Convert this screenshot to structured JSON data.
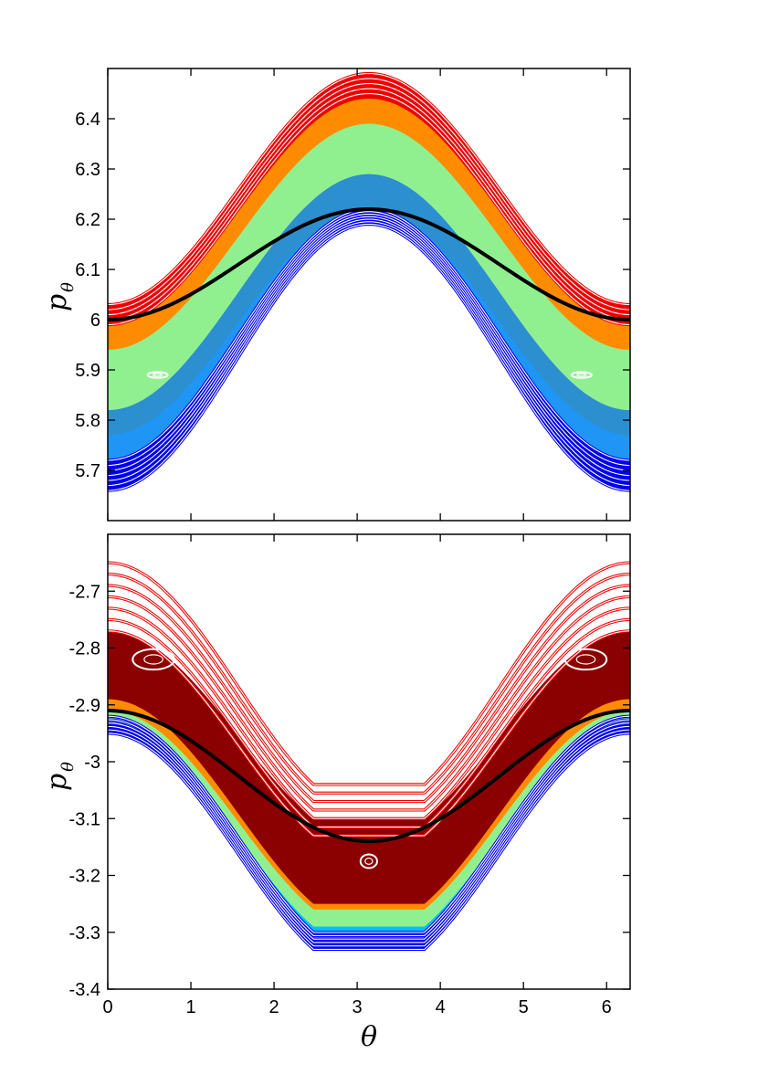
{
  "chart_data": [
    {
      "type": "scatter",
      "subtype": "poincare-section",
      "panel": "top",
      "title": "",
      "xlabel": "θ",
      "ylabel": {
        "main": "p",
        "subscript": "θ"
      },
      "xlim": [
        0,
        6.2832
      ],
      "ylim": [
        5.6,
        6.5
      ],
      "x_ticks": [
        0,
        1,
        2,
        3,
        4,
        5,
        6
      ],
      "y_ticks": [
        5.7,
        5.8,
        5.9,
        6.0,
        6.1,
        6.2,
        6.3,
        6.4
      ],
      "y_tick_labels": [
        "5.7",
        "5.8",
        "5.9",
        "6",
        "6.1",
        "6.2",
        "6.3",
        "6.4"
      ],
      "shape": "raised-cosine",
      "bands": [
        {
          "name": "blue",
          "color": "#0000ee",
          "edge_low": 5.66,
          "peak_low": 6.19,
          "edge_high": 5.73,
          "peak_high": 6.23
        },
        {
          "name": "dodger-blue",
          "color": "#1f96f5",
          "edge_low": 5.72,
          "peak_low": 6.22,
          "edge_high": 5.82,
          "peak_high": 6.26
        },
        {
          "name": "steel-blue",
          "color": "#2c8fd0",
          "edge_low": 5.77,
          "peak_low": 6.22,
          "edge_high": 5.82,
          "peak_high": 6.29
        },
        {
          "name": "light-green",
          "color": "#90f090",
          "edge_low": 5.82,
          "peak_low": 6.29,
          "edge_high": 5.95,
          "peak_high": 6.4
        },
        {
          "name": "orange",
          "color": "#ff8c00",
          "edge_low": 5.94,
          "peak_low": 6.39,
          "edge_high": 5.99,
          "peak_high": 6.45
        },
        {
          "name": "red",
          "color": "#ee0000",
          "edge_low": 5.99,
          "peak_low": 6.44,
          "edge_high": 6.03,
          "peak_high": 6.49
        }
      ],
      "curve_families": [
        {
          "color": "#0000ee",
          "count": 7,
          "edge_from": 5.66,
          "edge_to": 5.72,
          "peak_from": 6.19,
          "peak_to": 6.22
        },
        {
          "color": "#ee0000",
          "count": 5,
          "edge_from": 5.99,
          "edge_to": 6.03,
          "peak_from": 6.45,
          "peak_to": 6.49
        }
      ],
      "islands": [
        {
          "x": 0.6,
          "y": 5.89,
          "rx": 0.12,
          "ry": 0.006,
          "color": "#ffffff"
        },
        {
          "x": 5.7,
          "y": 5.89,
          "rx": 0.12,
          "ry": 0.006,
          "color": "#ffffff"
        }
      ],
      "overlay_curve": {
        "color": "#000000",
        "edge": 6.0,
        "peak": 6.22
      }
    },
    {
      "type": "scatter",
      "subtype": "poincare-section",
      "panel": "bottom",
      "title": "",
      "xlabel": "θ",
      "ylabel": {
        "main": "p",
        "subscript": "θ"
      },
      "xlim": [
        0,
        6.2832
      ],
      "ylim": [
        -3.4,
        -2.6
      ],
      "x_ticks": [
        0,
        1,
        2,
        3,
        4,
        5,
        6
      ],
      "y_ticks": [
        -3.4,
        -3.3,
        -3.2,
        -3.1,
        -3.0,
        -2.9,
        -2.8,
        -2.7
      ],
      "y_tick_labels": [
        "-3.4",
        "-3.3",
        "-3.2",
        "-3.1",
        "-3",
        "-2.9",
        "-2.8",
        "-2.7"
      ],
      "shape": "flattened-cosine",
      "bands": [
        {
          "name": "blue",
          "color": "#0000ee",
          "edge_low": -2.95,
          "trough_low": -3.33,
          "edge_high": -2.9,
          "trough_high": -3.29
        },
        {
          "name": "deep-sky-blue",
          "color": "#00bfff",
          "edge_low": -2.93,
          "trough_low": -3.31,
          "edge_high": -2.9,
          "trough_high": -3.28
        },
        {
          "name": "light-green",
          "color": "#90f090",
          "edge_low": -2.93,
          "trough_low": -3.29,
          "edge_high": -2.87,
          "trough_high": -3.23
        },
        {
          "name": "orange",
          "color": "#ff8c00",
          "edge_low": -2.91,
          "trough_low": -3.26,
          "edge_high": -2.84,
          "trough_high": -3.18
        },
        {
          "name": "dark-red",
          "color": "#8b0000",
          "edge_low": -2.89,
          "trough_low": -3.25,
          "edge_high": -2.77,
          "trough_high": -3.1
        }
      ],
      "curve_families": [
        {
          "color": "#0000ee",
          "count": 6,
          "edge_from": -2.95,
          "edge_to": -2.92,
          "trough_from": -3.33,
          "trough_to": -3.3
        },
        {
          "color": "#ee0000",
          "count": 7,
          "edge_from": -2.77,
          "edge_to": -2.65,
          "trough_from": -3.13,
          "trough_to": -3.04
        }
      ],
      "islands": [
        {
          "x": 0.55,
          "y": -2.82,
          "rx": 0.25,
          "ry": 0.018,
          "color": "#ffffff"
        },
        {
          "x": 5.75,
          "y": -2.82,
          "rx": 0.25,
          "ry": 0.018,
          "color": "#ffffff"
        },
        {
          "x": 3.14,
          "y": -3.175,
          "rx": 0.1,
          "ry": 0.012,
          "color": "#ffffff"
        }
      ],
      "overlay_curve": {
        "color": "#000000",
        "edge": -2.91,
        "trough": -3.14
      }
    }
  ]
}
